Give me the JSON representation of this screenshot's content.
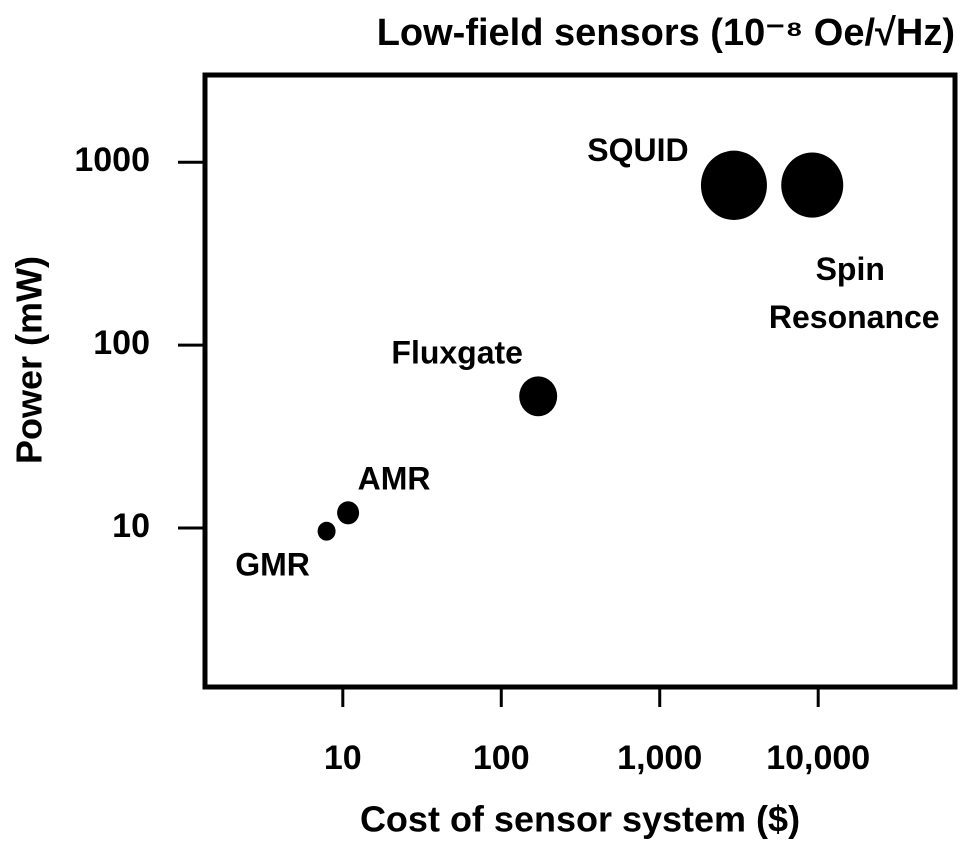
{
  "chart_data": {
    "type": "scatter",
    "title": "Low-field sensors (10⁻⁸ Oe/√Hz)",
    "x_label": "Cost of sensor system ($)",
    "y_label": "Power (mW)",
    "x_log": true,
    "y_log": true,
    "xlim": [
      1.35,
      73000
    ],
    "ylim": [
      1.35,
      3000
    ],
    "xticks": [
      10,
      100,
      {
        "value": 1000,
        "label": "1,000"
      },
      {
        "value": 10000,
        "label": "10,000"
      }
    ],
    "yticks": [
      10,
      100,
      1000
    ],
    "color": "#000000",
    "labels": [
      "GMR",
      "AMR",
      "Fluxgate",
      "SQUID",
      "Spin Resonance"
    ],
    "x": [
      7.9,
      10.8,
      171,
      2940,
      9170
    ],
    "values": [
      9.6,
      12.1,
      52.5,
      748,
      750
    ],
    "sizes": [
      9,
      11,
      19,
      33,
      31
    ]
  }
}
